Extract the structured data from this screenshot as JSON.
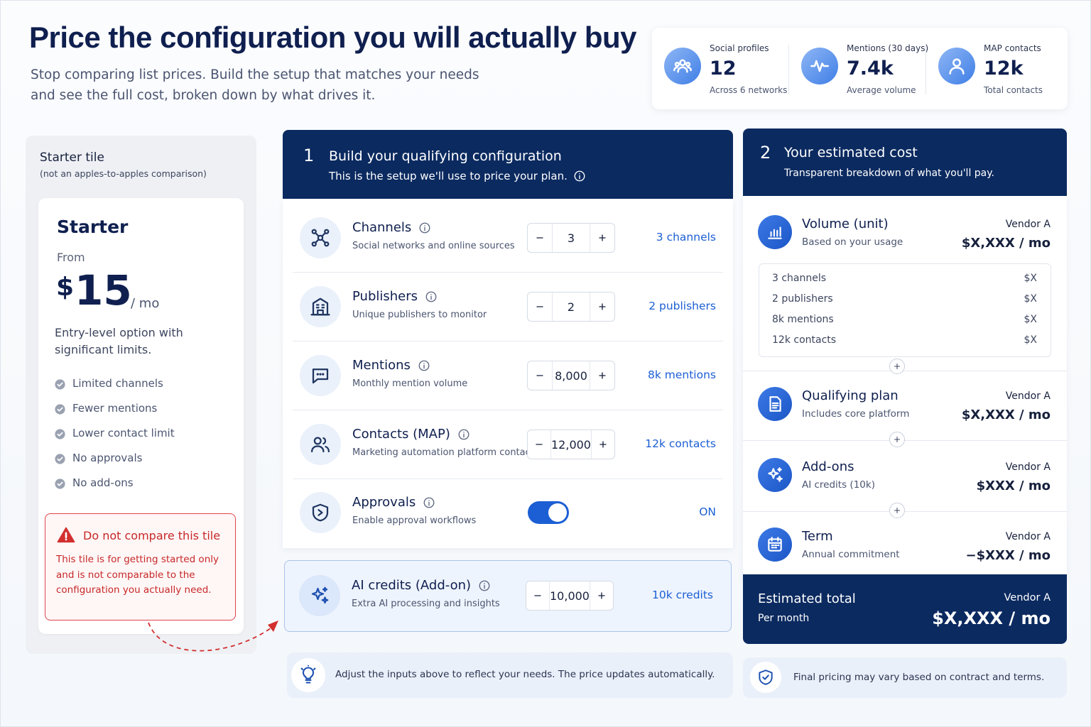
{
  "header": {
    "title": "Price the configuration you will actually buy",
    "subtitle": "Stop comparing list prices. Build the setup that matches your needs and see the full cost, broken down by what drives it."
  },
  "stats": [
    {
      "label": "Social profiles",
      "value": "12",
      "note": "Across 6 networks"
    },
    {
      "label": "Mentions (30 days)",
      "value": "7.4k",
      "note": "Average volume"
    },
    {
      "label": "MAP contacts",
      "value": "12k",
      "note": "Total contacts"
    }
  ],
  "starter": {
    "tile_title": "Starter tile",
    "tile_note": "(not an apples-to-apples comparison)",
    "name": "Starter",
    "from": "From",
    "currency": "$",
    "price": "15",
    "period": "/ mo",
    "description": "Entry-level option with significant limits.",
    "limits": [
      "Limited channels",
      "Fewer mentions",
      "Lower contact limit",
      "No approvals",
      "No add-ons"
    ],
    "warning": {
      "title": "Do not compare this tile",
      "text": "This tile is for getting started only and is not comparable to the configuration you actually need."
    }
  },
  "configuration": {
    "step": "1",
    "title": "Build your qualifying configuration",
    "subtitle": "This is the setup we'll use to price your plan.",
    "inputs": [
      {
        "name": "Channels",
        "description": "Social networks and online sources",
        "value": "3",
        "summary": "3 channels"
      },
      {
        "name": "Publishers",
        "description": "Unique publishers to monitor",
        "value": "2",
        "summary": "2 publishers"
      },
      {
        "name": "Mentions",
        "description": "Monthly mention volume",
        "value": "8,000",
        "summary": "8k mentions"
      },
      {
        "name": "Contacts (MAP)",
        "description": "Marketing automation platform contacts",
        "value": "12,000",
        "summary": "12k contacts"
      }
    ],
    "approvals": {
      "name": "Approvals",
      "description": "Enable approval workflows",
      "state": "ON"
    },
    "addon": {
      "name": "AI credits (Add-on)",
      "description": "Extra AI processing and insights",
      "value": "10,000",
      "summary": "10k credits"
    },
    "tip": "Adjust the inputs above to reflect your needs. The price updates automatically."
  },
  "cost": {
    "step": "2",
    "title": "Your estimated cost",
    "subtitle": "Transparent breakdown of what you'll pay.",
    "items": [
      {
        "name": "Volume (unit)",
        "description": "Based on your usage",
        "vendor": "Vendor A",
        "price": "$X,XXX / mo"
      },
      {
        "name": "Qualifying plan",
        "description": "Includes core platform",
        "vendor": "Vendor A",
        "price": "$X,XXX / mo"
      },
      {
        "name": "Add-ons",
        "description": "AI credits (10k)",
        "vendor": "Vendor A",
        "price": "$XXX / mo"
      },
      {
        "name": "Term",
        "description": "Annual commitment",
        "vendor": "Vendor A",
        "price": "−$XXX / mo"
      }
    ],
    "breakdown": [
      {
        "label": "3 channels",
        "price": "$X"
      },
      {
        "label": "2 publishers",
        "price": "$X"
      },
      {
        "label": "8k mentions",
        "price": "$X"
      },
      {
        "label": "12k contacts",
        "price": "$X"
      }
    ],
    "total": {
      "label": "Estimated total",
      "sub": "Per month",
      "vendor": "Vendor A",
      "price": "$X,XXX / mo"
    },
    "note": "Final pricing may vary based on contract and terms."
  }
}
